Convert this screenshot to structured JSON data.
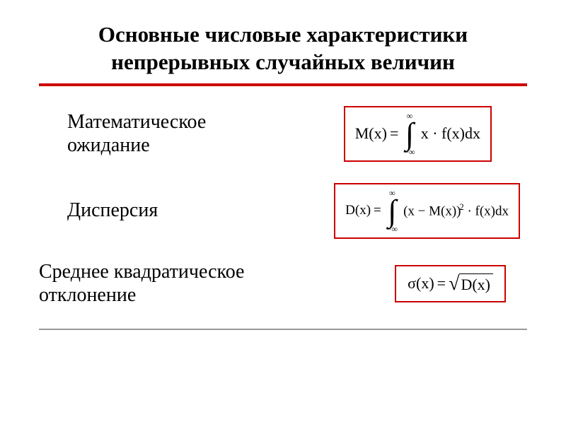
{
  "title_line1": "Основные числовые характеристики",
  "title_line2": "непрерывных случайных величин",
  "colors": {
    "accent": "#cc0000",
    "gray": "#999999",
    "text": "#000000",
    "bg": "#ffffff"
  },
  "rows": [
    {
      "label_line1": "Математическое",
      "label_line2": "ожидание",
      "lhs": "M(x)",
      "eq": " = ",
      "int_upper": "∞",
      "int_lower": "−∞",
      "integrand": "x · f(x)dx"
    },
    {
      "label": "Дисперсия",
      "lhs": "D(x)",
      "eq": " = ",
      "int_upper": "∞",
      "int_lower": "−∞",
      "base": "(x − M(x))",
      "exp": "2",
      "tail": " · f(x)dx"
    },
    {
      "label_line1": "Среднее квадратическое",
      "label_line2": "отклонение",
      "lhs": "σ(x)",
      "eq": " = ",
      "rad_body": "D(x)"
    }
  ],
  "typography": {
    "title_fontsize": 31,
    "label_fontsize": 28,
    "eq_fontsize": 22,
    "eq_small_fontsize": 19,
    "font_family": "Times New Roman"
  }
}
